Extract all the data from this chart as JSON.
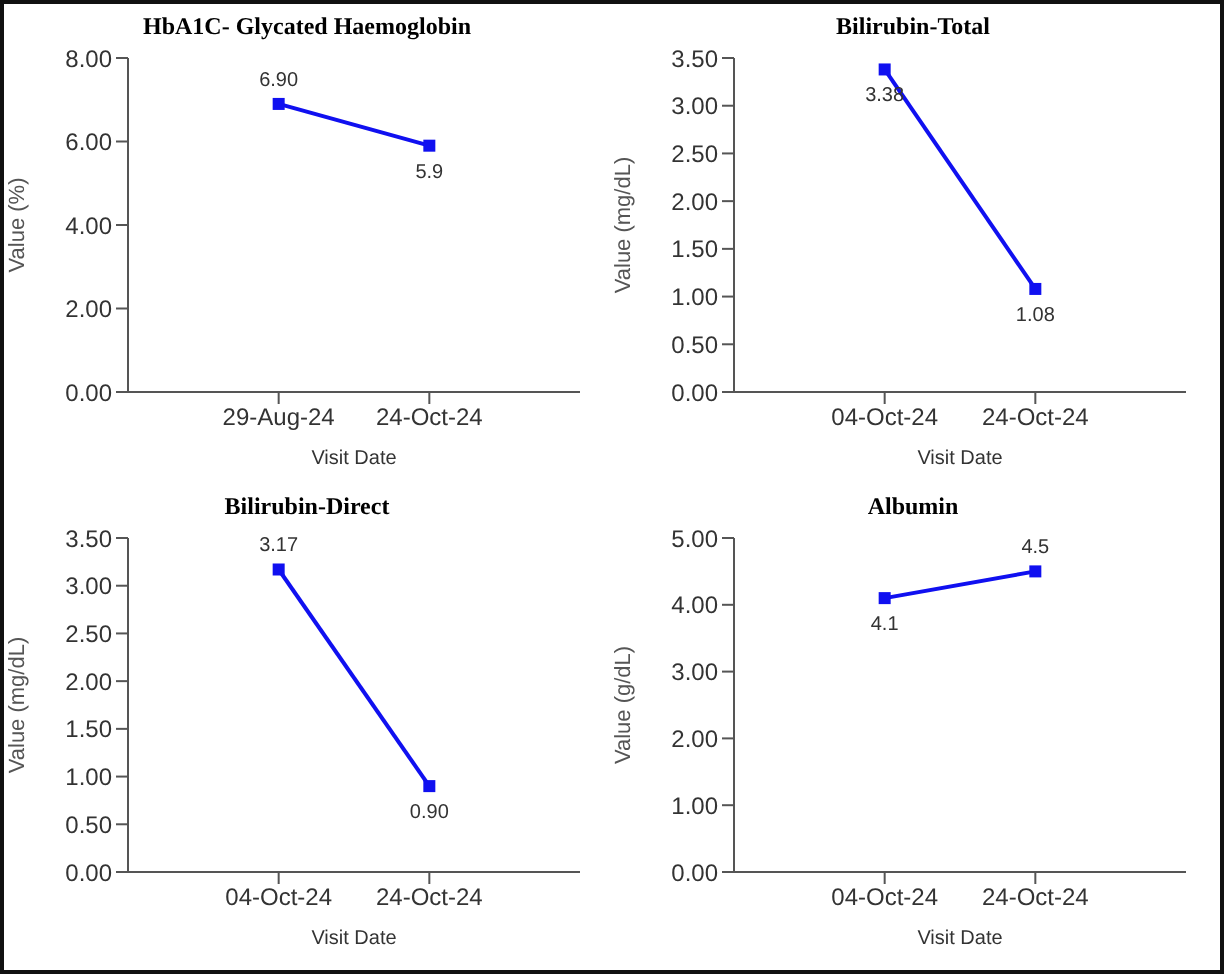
{
  "chart_data": [
    {
      "type": "line",
      "title": "HbA1C- Glycated Haemoglobin",
      "xlabel": "Visit Date",
      "ylabel": "Value (%)",
      "categories": [
        "29-Aug-24",
        "24-Oct-24"
      ],
      "values": [
        6.9,
        5.9
      ],
      "value_labels": [
        "6.90",
        "5.9"
      ],
      "color": "#1010f0",
      "ylim": [
        0,
        8
      ],
      "yticks": [
        {
          "value": 0,
          "label": "0.00"
        },
        {
          "value": 2,
          "label": "2.00"
        },
        {
          "value": 4,
          "label": "4.00"
        },
        {
          "value": 6,
          "label": "6.00"
        },
        {
          "value": 8,
          "label": "8.00"
        }
      ],
      "marker": "square",
      "grid": false,
      "legend": false
    },
    {
      "type": "line",
      "title": "Bilirubin-Total",
      "xlabel": "Visit Date",
      "ylabel": "Value (mg/dL)",
      "categories": [
        "04-Oct-24",
        "24-Oct-24"
      ],
      "values": [
        3.38,
        1.08
      ],
      "value_labels": [
        "3.38",
        "1.08"
      ],
      "color": "#1010f0",
      "ylim": [
        0,
        3.5
      ],
      "yticks": [
        {
          "value": 0,
          "label": "0.00"
        },
        {
          "value": 0.5,
          "label": "0.50"
        },
        {
          "value": 1,
          "label": "1.00"
        },
        {
          "value": 1.5,
          "label": "1.50"
        },
        {
          "value": 2,
          "label": "2.00"
        },
        {
          "value": 2.5,
          "label": "2.50"
        },
        {
          "value": 3,
          "label": "3.00"
        },
        {
          "value": 3.5,
          "label": "3.50"
        }
      ],
      "marker": "square",
      "grid": false,
      "legend": false
    },
    {
      "type": "line",
      "title": "Bilirubin-Direct",
      "xlabel": "Visit Date",
      "ylabel": "Value (mg/dL)",
      "categories": [
        "04-Oct-24",
        "24-Oct-24"
      ],
      "values": [
        3.17,
        0.9
      ],
      "value_labels": [
        "3.17",
        "0.90"
      ],
      "color": "#1010f0",
      "ylim": [
        0,
        3.5
      ],
      "yticks": [
        {
          "value": 0,
          "label": "0.00"
        },
        {
          "value": 0.5,
          "label": "0.50"
        },
        {
          "value": 1,
          "label": "1.00"
        },
        {
          "value": 1.5,
          "label": "1.50"
        },
        {
          "value": 2,
          "label": "2.00"
        },
        {
          "value": 2.5,
          "label": "2.50"
        },
        {
          "value": 3,
          "label": "3.00"
        },
        {
          "value": 3.5,
          "label": "3.50"
        }
      ],
      "marker": "square",
      "grid": false,
      "legend": false
    },
    {
      "type": "line",
      "title": "Albumin",
      "xlabel": "Visit Date",
      "ylabel": "Value (g/dL)",
      "categories": [
        "04-Oct-24",
        "24-Oct-24"
      ],
      "values": [
        4.1,
        4.5
      ],
      "value_labels": [
        "4.1",
        "4.5"
      ],
      "color": "#1010f0",
      "ylim": [
        0,
        5
      ],
      "yticks": [
        {
          "value": 0,
          "label": "0.00"
        },
        {
          "value": 1,
          "label": "1.00"
        },
        {
          "value": 2,
          "label": "2.00"
        },
        {
          "value": 3,
          "label": "3.00"
        },
        {
          "value": 4,
          "label": "4.00"
        },
        {
          "value": 5,
          "label": "5.00"
        }
      ],
      "marker": "square",
      "grid": false,
      "legend": false
    }
  ]
}
